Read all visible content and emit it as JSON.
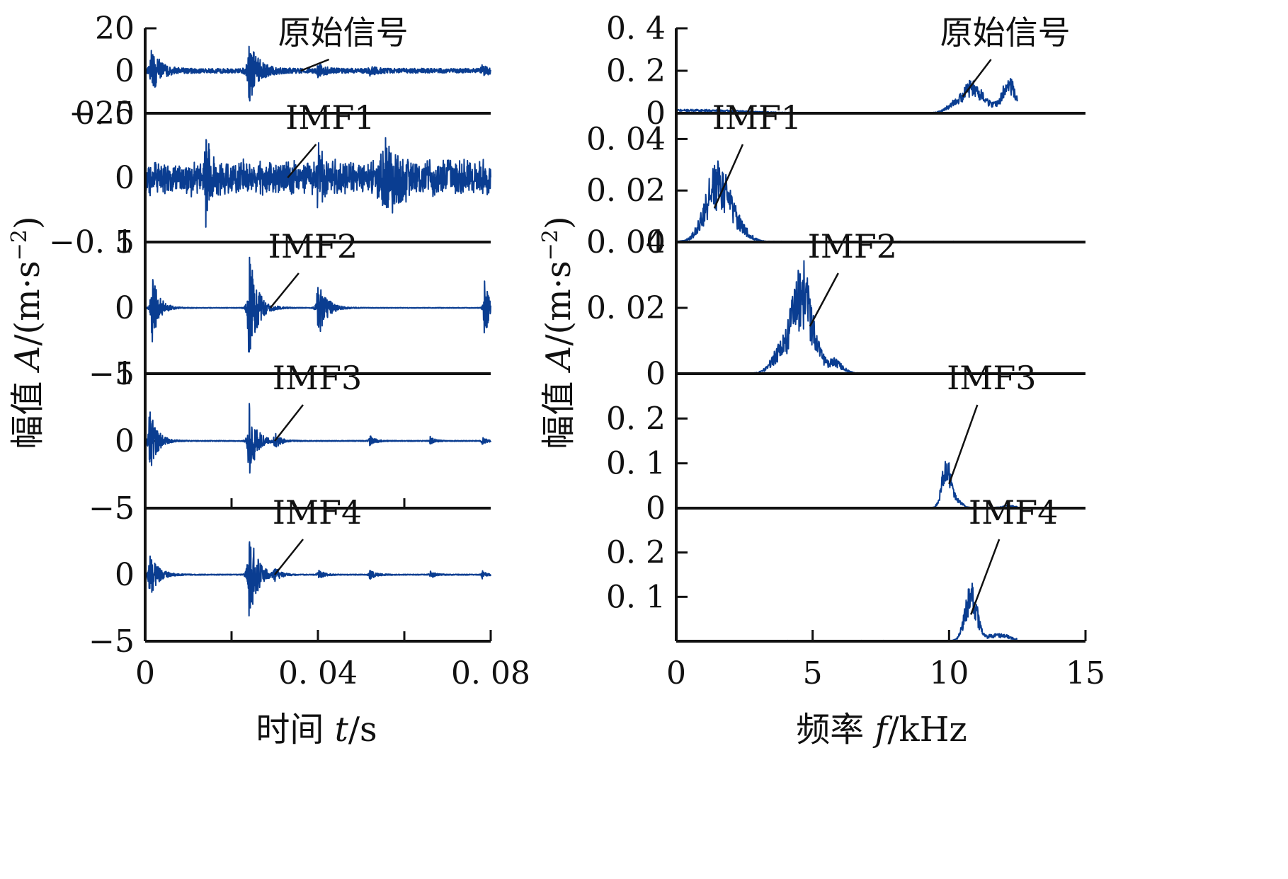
{
  "line_color": "#0a3d91",
  "chart_data": [
    {
      "type": "line",
      "xlabel_parts": [
        "时间 ",
        "t",
        "/s"
      ],
      "ylabel_parts": [
        "幅值 ",
        "A",
        "/(m·s",
        "−2",
        ")"
      ],
      "xlim": [
        0,
        0.08
      ],
      "xticks": [
        0,
        0.04,
        0.08
      ],
      "xtick_labels": [
        "0",
        "0. 04",
        "0. 08"
      ],
      "minor_xticks": [
        0.02,
        0.06
      ],
      "panels": [
        {
          "name": "原始信号",
          "ylim": [
            -20,
            20
          ],
          "yticks": [
            20,
            0,
            -20
          ],
          "ytick_labels": [
            "20",
            "0",
            "−20"
          ],
          "envelope": {
            "base": 0.9,
            "noise_amp": 0.5,
            "bursts": [
              {
                "t": 0.0015,
                "amp": 12,
                "decay": 0.0018
              },
              {
                "t": 0.024,
                "amp": 16,
                "decay": 0.002
              },
              {
                "t": 0.04,
                "amp": 3,
                "decay": 0.0015
              },
              {
                "t": 0.052,
                "amp": 1.5,
                "decay": 0.0015
              },
              {
                "t": 0.078,
                "amp": 2,
                "decay": 0.0015
              }
            ]
          },
          "callout_x": 0.036
        },
        {
          "name": "IMF1",
          "ylim": [
            -0.5,
            0.5
          ],
          "yticks": [
            0.5,
            0,
            -0.5
          ],
          "ytick_labels": [
            "0. 5",
            "0",
            "−0. 5"
          ],
          "envelope": {
            "base": 0.13,
            "noise_amp": 0.2,
            "spiky": true,
            "bursts": [
              {
                "t": 0.014,
                "amp": 0.3,
                "decay": 0.001
              },
              {
                "t": 0.04,
                "amp": 0.3,
                "decay": 0.001
              },
              {
                "t": 0.055,
                "amp": 0.22,
                "decay": 0.004
              }
            ]
          },
          "callout_x": 0.033
        },
        {
          "name": "IMF2",
          "ylim": [
            -1,
            1
          ],
          "yticks": [
            1,
            0,
            -1
          ],
          "ytick_labels": [
            "1",
            "0",
            "−1"
          ],
          "envelope": {
            "base": 0.06,
            "noise_amp": 0.05,
            "bursts": [
              {
                "t": 0.0015,
                "amp": 0.6,
                "decay": 0.0015
              },
              {
                "t": 0.024,
                "amp": 0.9,
                "decay": 0.0018
              },
              {
                "t": 0.04,
                "amp": 0.5,
                "decay": 0.0018
              },
              {
                "t": 0.0785,
                "amp": 0.5,
                "decay": 0.0012
              }
            ]
          },
          "callout_x": 0.029
        },
        {
          "name": "IMF3",
          "ylim": [
            -5,
            5
          ],
          "yticks": [
            5,
            0,
            -5
          ],
          "ytick_labels": [
            "5",
            "0",
            "−5"
          ],
          "envelope": {
            "base": 0.1,
            "noise_amp": 0.05,
            "bursts": [
              {
                "t": 0.001,
                "amp": 2.6,
                "decay": 0.0016
              },
              {
                "t": 0.024,
                "amp": 3.2,
                "decay": 0.0016
              },
              {
                "t": 0.03,
                "amp": 0.6,
                "decay": 0.0012
              },
              {
                "t": 0.052,
                "amp": 0.4,
                "decay": 0.0012
              },
              {
                "t": 0.066,
                "amp": 0.3,
                "decay": 0.001
              },
              {
                "t": 0.078,
                "amp": 0.3,
                "decay": 0.001
              }
            ]
          },
          "callout_x": 0.03
        },
        {
          "name": "IMF4",
          "ylim": [
            -5,
            5
          ],
          "yticks": [
            5,
            0,
            -5
          ],
          "ytick_labels": [
            "5",
            "0",
            "−5"
          ],
          "envelope": {
            "base": 0.1,
            "noise_amp": 0.05,
            "bursts": [
              {
                "t": 0.001,
                "amp": 1.8,
                "decay": 0.0018
              },
              {
                "t": 0.024,
                "amp": 3.8,
                "decay": 0.0018
              },
              {
                "t": 0.03,
                "amp": 0.5,
                "decay": 0.0012
              },
              {
                "t": 0.04,
                "amp": 0.4,
                "decay": 0.0012
              },
              {
                "t": 0.052,
                "amp": 0.4,
                "decay": 0.0012
              },
              {
                "t": 0.066,
                "amp": 0.3,
                "decay": 0.001
              },
              {
                "t": 0.078,
                "amp": 0.3,
                "decay": 0.001
              }
            ]
          },
          "callout_x": 0.03
        }
      ]
    },
    {
      "type": "line",
      "xlabel_parts": [
        "频率 ",
        "f",
        "/kHz"
      ],
      "ylabel_parts": [
        "幅值 ",
        "A",
        "/(m·s",
        "−2",
        ")"
      ],
      "xlim": [
        0,
        15
      ],
      "xticks": [
        0,
        5,
        10,
        15
      ],
      "xtick_labels": [
        "0",
        "5",
        "10",
        "15"
      ],
      "minor_xticks": [],
      "x_end": 12.5,
      "panels": [
        {
          "name": "原始信号",
          "ylim": [
            0,
            0.4
          ],
          "yticks": [
            0.4,
            0.2,
            0
          ],
          "ytick_labels": [
            "0. 4",
            "0. 2",
            "0"
          ],
          "peaks": [
            {
              "f": 0.6,
              "h": 0.012,
              "w": 2.5
            },
            {
              "f": 10.4,
              "h": 0.06,
              "w": 0.5
            },
            {
              "f": 10.9,
              "h": 0.09,
              "w": 0.35
            },
            {
              "f": 11.4,
              "h": 0.04,
              "w": 0.4
            },
            {
              "f": 12.2,
              "h": 0.13,
              "w": 0.35
            }
          ],
          "noise": 0.35,
          "callout_f": 10.5
        },
        {
          "name": "IMF1",
          "ylim": [
            0,
            0.05
          ],
          "yticks": [
            0.04,
            0.02,
            0
          ],
          "ytick_labels": [
            "0. 04",
            "0. 02",
            "0"
          ],
          "peaks": [
            {
              "f": 1.5,
              "h": 0.022,
              "w": 0.6
            },
            {
              "f": 2.3,
              "h": 0.004,
              "w": 0.5
            }
          ],
          "noise": 0.45,
          "callout_f": 1.4
        },
        {
          "name": "IMF2",
          "ylim": [
            0,
            0.04
          ],
          "yticks": [
            0.04,
            0.02,
            0
          ],
          "ytick_labels": [
            "0. 04",
            "0. 02",
            "0"
          ],
          "peaks": [
            {
              "f": 4.6,
              "h": 0.024,
              "w": 0.55
            },
            {
              "f": 3.7,
              "h": 0.004,
              "w": 0.4
            },
            {
              "f": 5.8,
              "h": 0.003,
              "w": 0.4
            }
          ],
          "noise": 0.45,
          "callout_f": 4.9
        },
        {
          "name": "IMF3",
          "ylim": [
            0,
            0.3
          ],
          "yticks": [
            0.2,
            0.1,
            0
          ],
          "ytick_labels": [
            "0. 2",
            "0. 1",
            "0"
          ],
          "peaks": [
            {
              "f": 9.9,
              "h": 0.09,
              "w": 0.22
            },
            {
              "f": 10.3,
              "h": 0.015,
              "w": 0.25
            },
            {
              "f": 12.2,
              "h": 0.004,
              "w": 0.3
            }
          ],
          "noise": 0.35,
          "callout_f": 10.0
        },
        {
          "name": "IMF4",
          "ylim": [
            0,
            0.3
          ],
          "yticks": [
            0.2,
            0.1
          ],
          "ytick_labels": [
            "0. 2",
            "0. 1"
          ],
          "peaks": [
            {
              "f": 10.8,
              "h": 0.1,
              "w": 0.3
            },
            {
              "f": 11.8,
              "h": 0.012,
              "w": 0.6
            }
          ],
          "noise": 0.4,
          "callout_f": 10.8
        }
      ]
    }
  ]
}
